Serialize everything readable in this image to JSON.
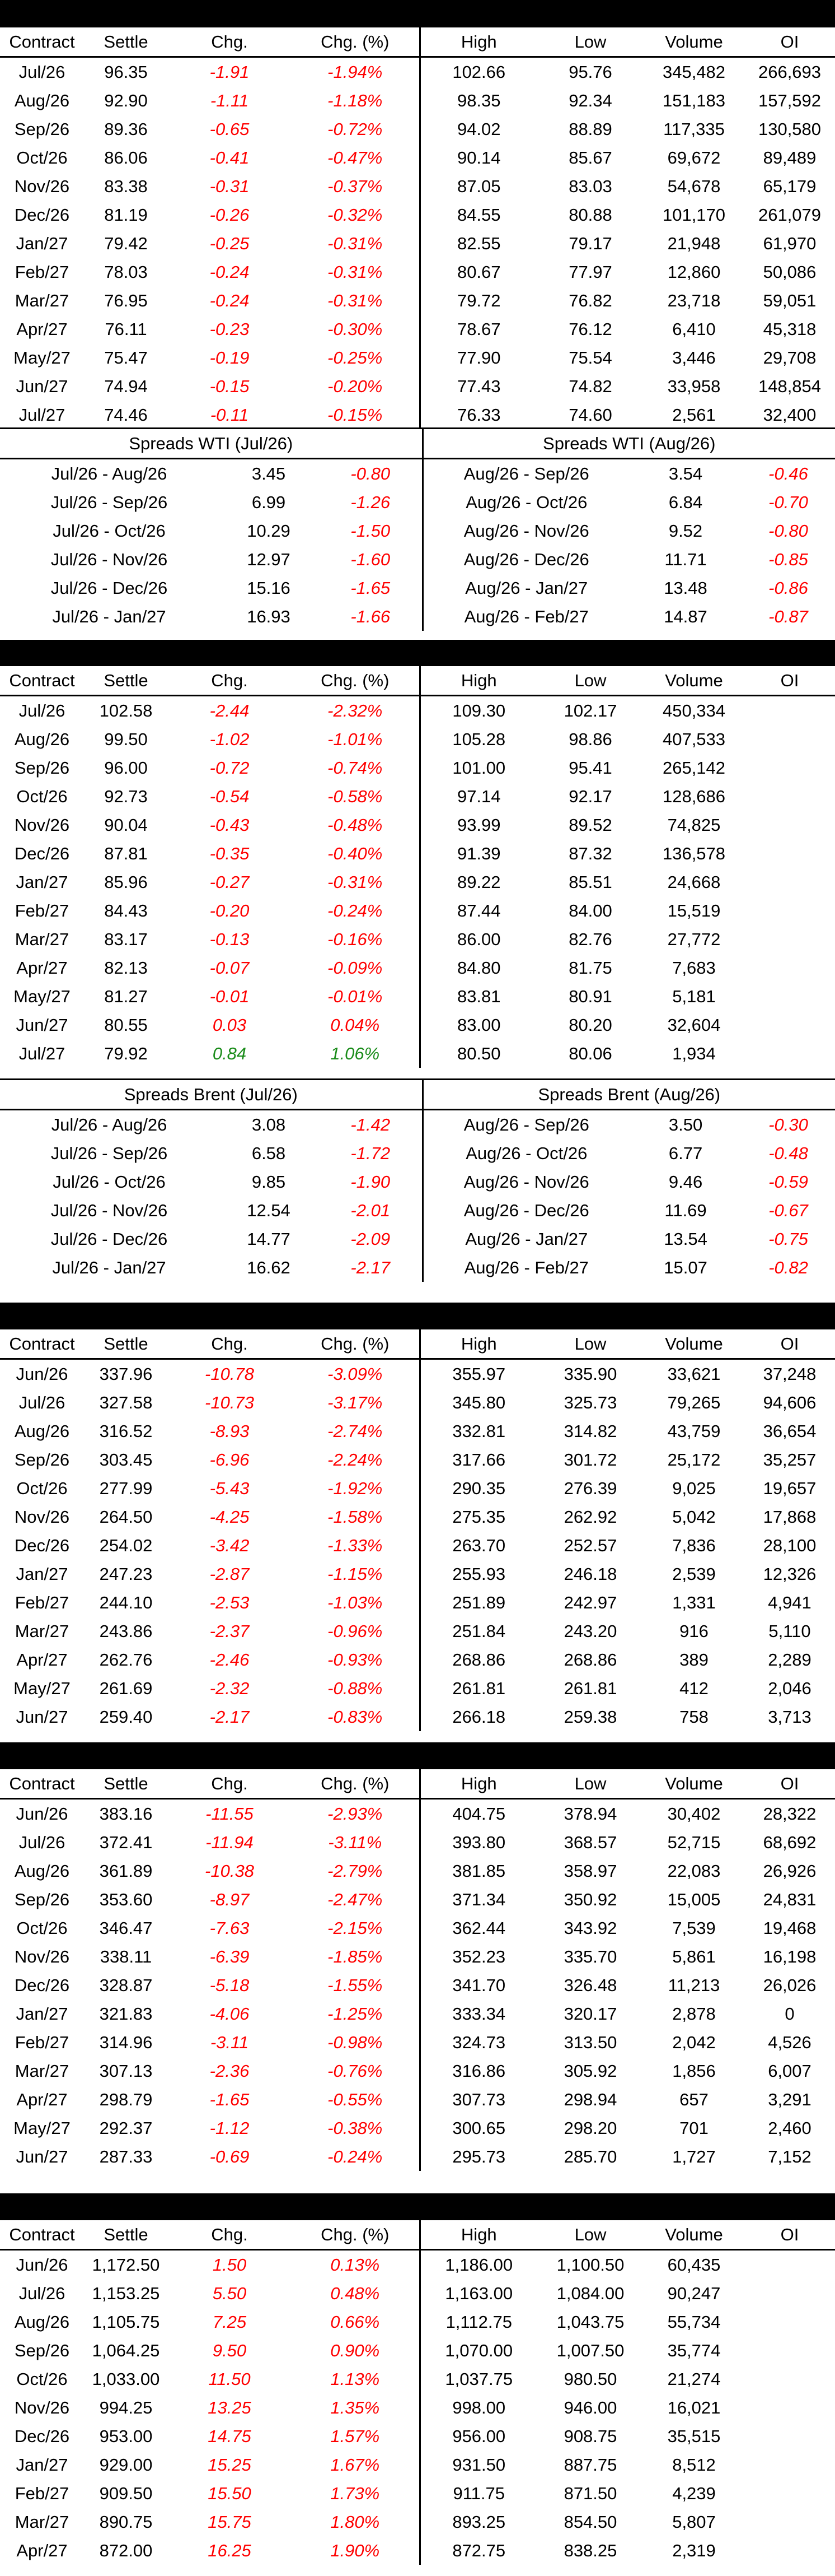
{
  "columns": [
    "Contract",
    "Settle",
    "Chg.",
    "Chg. (%)",
    "High",
    "Low",
    "Volume",
    "OI"
  ],
  "wti": {
    "rows": [
      [
        "Jul/26",
        "96.35",
        "-1.91",
        "-1.94%",
        "102.66",
        "95.76",
        "345,482",
        "266,693"
      ],
      [
        "Aug/26",
        "92.90",
        "-1.11",
        "-1.18%",
        "98.35",
        "92.34",
        "151,183",
        "157,592"
      ],
      [
        "Sep/26",
        "89.36",
        "-0.65",
        "-0.72%",
        "94.02",
        "88.89",
        "117,335",
        "130,580"
      ],
      [
        "Oct/26",
        "86.06",
        "-0.41",
        "-0.47%",
        "90.14",
        "85.67",
        "69,672",
        "89,489"
      ],
      [
        "Nov/26",
        "83.38",
        "-0.31",
        "-0.37%",
        "87.05",
        "83.03",
        "54,678",
        "65,179"
      ],
      [
        "Dec/26",
        "81.19",
        "-0.26",
        "-0.32%",
        "84.55",
        "80.88",
        "101,170",
        "261,079"
      ],
      [
        "Jan/27",
        "79.42",
        "-0.25",
        "-0.31%",
        "82.55",
        "79.17",
        "21,948",
        "61,970"
      ],
      [
        "Feb/27",
        "78.03",
        "-0.24",
        "-0.31%",
        "80.67",
        "77.97",
        "12,860",
        "50,086"
      ],
      [
        "Mar/27",
        "76.95",
        "-0.24",
        "-0.31%",
        "79.72",
        "76.82",
        "23,718",
        "59,051"
      ],
      [
        "Apr/27",
        "76.11",
        "-0.23",
        "-0.30%",
        "78.67",
        "76.12",
        "6,410",
        "45,318"
      ],
      [
        "May/27",
        "75.47",
        "-0.19",
        "-0.25%",
        "77.90",
        "75.54",
        "3,446",
        "29,708"
      ],
      [
        "Jun/27",
        "74.94",
        "-0.15",
        "-0.20%",
        "77.43",
        "74.82",
        "33,958",
        "148,854"
      ],
      [
        "Jul/27",
        "74.46",
        "-0.11",
        "-0.15%",
        "76.33",
        "74.60",
        "2,561",
        "32,400"
      ]
    ],
    "spreads_left_title": "Spreads WTI (Jul/26)",
    "spreads_right_title": "Spreads WTI (Aug/26)",
    "spreads_left": [
      [
        "Jul/26 - Aug/26",
        "3.45",
        "-0.80"
      ],
      [
        "Jul/26 - Sep/26",
        "6.99",
        "-1.26"
      ],
      [
        "Jul/26 - Oct/26",
        "10.29",
        "-1.50"
      ],
      [
        "Jul/26 - Nov/26",
        "12.97",
        "-1.60"
      ],
      [
        "Jul/26 - Dec/26",
        "15.16",
        "-1.65"
      ],
      [
        "Jul/26 - Jan/27",
        "16.93",
        "-1.66"
      ]
    ],
    "spreads_right": [
      [
        "Aug/26 - Sep/26",
        "3.54",
        "-0.46"
      ],
      [
        "Aug/26 - Oct/26",
        "6.84",
        "-0.70"
      ],
      [
        "Aug/26 - Nov/26",
        "9.52",
        "-0.80"
      ],
      [
        "Aug/26 - Dec/26",
        "11.71",
        "-0.85"
      ],
      [
        "Aug/26 - Jan/27",
        "13.48",
        "-0.86"
      ],
      [
        "Aug/26 - Feb/27",
        "14.87",
        "-0.87"
      ]
    ]
  },
  "brent": {
    "rows": [
      [
        "Jul/26",
        "102.58",
        "-2.44",
        "-2.32%",
        "109.30",
        "102.17",
        "450,334",
        ""
      ],
      [
        "Aug/26",
        "99.50",
        "-1.02",
        "-1.01%",
        "105.28",
        "98.86",
        "407,533",
        ""
      ],
      [
        "Sep/26",
        "96.00",
        "-0.72",
        "-0.74%",
        "101.00",
        "95.41",
        "265,142",
        ""
      ],
      [
        "Oct/26",
        "92.73",
        "-0.54",
        "-0.58%",
        "97.14",
        "92.17",
        "128,686",
        ""
      ],
      [
        "Nov/26",
        "90.04",
        "-0.43",
        "-0.48%",
        "93.99",
        "89.52",
        "74,825",
        ""
      ],
      [
        "Dec/26",
        "87.81",
        "-0.35",
        "-0.40%",
        "91.39",
        "87.32",
        "136,578",
        ""
      ],
      [
        "Jan/27",
        "85.96",
        "-0.27",
        "-0.31%",
        "89.22",
        "85.51",
        "24,668",
        ""
      ],
      [
        "Feb/27",
        "84.43",
        "-0.20",
        "-0.24%",
        "87.44",
        "84.00",
        "15,519",
        ""
      ],
      [
        "Mar/27",
        "83.17",
        "-0.13",
        "-0.16%",
        "86.00",
        "82.76",
        "27,772",
        ""
      ],
      [
        "Apr/27",
        "82.13",
        "-0.07",
        "-0.09%",
        "84.80",
        "81.75",
        "7,683",
        ""
      ],
      [
        "May/27",
        "81.27",
        "-0.01",
        "-0.01%",
        "83.81",
        "80.91",
        "5,181",
        ""
      ],
      [
        "Jun/27",
        "80.55",
        "0.03",
        "0.04%",
        "83.00",
        "80.20",
        "32,604",
        ""
      ],
      [
        "Jul/27",
        "79.92",
        "0.84",
        "1.06%",
        "80.50",
        "80.06",
        "1,934",
        ""
      ]
    ],
    "spreads_left_title": "Spreads Brent (Jul/26)",
    "spreads_right_title": "Spreads Brent (Aug/26)",
    "spreads_left": [
      [
        "Jul/26 - Aug/26",
        "3.08",
        "-1.42"
      ],
      [
        "Jul/26 - Sep/26",
        "6.58",
        "-1.72"
      ],
      [
        "Jul/26 - Oct/26",
        "9.85",
        "-1.90"
      ],
      [
        "Jul/26 - Nov/26",
        "12.54",
        "-2.01"
      ],
      [
        "Jul/26 - Dec/26",
        "14.77",
        "-2.09"
      ],
      [
        "Jul/26 - Jan/27",
        "16.62",
        "-2.17"
      ]
    ],
    "spreads_right": [
      [
        "Aug/26 - Sep/26",
        "3.50",
        "-0.30"
      ],
      [
        "Aug/26 - Oct/26",
        "6.77",
        "-0.48"
      ],
      [
        "Aug/26 - Nov/26",
        "9.46",
        "-0.59"
      ],
      [
        "Aug/26 - Dec/26",
        "11.69",
        "-0.67"
      ],
      [
        "Aug/26 - Jan/27",
        "13.54",
        "-0.75"
      ],
      [
        "Aug/26 - Feb/27",
        "15.07",
        "-0.82"
      ]
    ]
  },
  "table3": {
    "rows": [
      [
        "Jun/26",
        "337.96",
        "-10.78",
        "-3.09%",
        "355.97",
        "335.90",
        "33,621",
        "37,248"
      ],
      [
        "Jul/26",
        "327.58",
        "-10.73",
        "-3.17%",
        "345.80",
        "325.73",
        "79,265",
        "94,606"
      ],
      [
        "Aug/26",
        "316.52",
        "-8.93",
        "-2.74%",
        "332.81",
        "314.82",
        "43,759",
        "36,654"
      ],
      [
        "Sep/26",
        "303.45",
        "-6.96",
        "-2.24%",
        "317.66",
        "301.72",
        "25,172",
        "35,257"
      ],
      [
        "Oct/26",
        "277.99",
        "-5.43",
        "-1.92%",
        "290.35",
        "276.39",
        "9,025",
        "19,657"
      ],
      [
        "Nov/26",
        "264.50",
        "-4.25",
        "-1.58%",
        "275.35",
        "262.92",
        "5,042",
        "17,868"
      ],
      [
        "Dec/26",
        "254.02",
        "-3.42",
        "-1.33%",
        "263.70",
        "252.57",
        "7,836",
        "28,100"
      ],
      [
        "Jan/27",
        "247.23",
        "-2.87",
        "-1.15%",
        "255.93",
        "246.18",
        "2,539",
        "12,326"
      ],
      [
        "Feb/27",
        "244.10",
        "-2.53",
        "-1.03%",
        "251.89",
        "242.97",
        "1,331",
        "4,941"
      ],
      [
        "Mar/27",
        "243.86",
        "-2.37",
        "-0.96%",
        "251.84",
        "243.20",
        "916",
        "5,110"
      ],
      [
        "Apr/27",
        "262.76",
        "-2.46",
        "-0.93%",
        "268.86",
        "268.86",
        "389",
        "2,289"
      ],
      [
        "May/27",
        "261.69",
        "-2.32",
        "-0.88%",
        "261.81",
        "261.81",
        "412",
        "2,046"
      ],
      [
        "Jun/27",
        "259.40",
        "-2.17",
        "-0.83%",
        "266.18",
        "259.38",
        "758",
        "3,713"
      ]
    ]
  },
  "table4": {
    "rows": [
      [
        "Jun/26",
        "383.16",
        "-11.55",
        "-2.93%",
        "404.75",
        "378.94",
        "30,402",
        "28,322"
      ],
      [
        "Jul/26",
        "372.41",
        "-11.94",
        "-3.11%",
        "393.80",
        "368.57",
        "52,715",
        "68,692"
      ],
      [
        "Aug/26",
        "361.89",
        "-10.38",
        "-2.79%",
        "381.85",
        "358.97",
        "22,083",
        "26,926"
      ],
      [
        "Sep/26",
        "353.60",
        "-8.97",
        "-2.47%",
        "371.34",
        "350.92",
        "15,005",
        "24,831"
      ],
      [
        "Oct/26",
        "346.47",
        "-7.63",
        "-2.15%",
        "362.44",
        "343.92",
        "7,539",
        "19,468"
      ],
      [
        "Nov/26",
        "338.11",
        "-6.39",
        "-1.85%",
        "352.23",
        "335.70",
        "5,861",
        "16,198"
      ],
      [
        "Dec/26",
        "328.87",
        "-5.18",
        "-1.55%",
        "341.70",
        "326.48",
        "11,213",
        "26,026"
      ],
      [
        "Jan/27",
        "321.83",
        "-4.06",
        "-1.25%",
        "333.34",
        "320.17",
        "2,878",
        "0"
      ],
      [
        "Feb/27",
        "314.96",
        "-3.11",
        "-0.98%",
        "324.73",
        "313.50",
        "2,042",
        "4,526"
      ],
      [
        "Mar/27",
        "307.13",
        "-2.36",
        "-0.76%",
        "316.86",
        "305.92",
        "1,856",
        "6,007"
      ],
      [
        "Apr/27",
        "298.79",
        "-1.65",
        "-0.55%",
        "307.73",
        "298.94",
        "657",
        "3,291"
      ],
      [
        "May/27",
        "292.37",
        "-1.12",
        "-0.38%",
        "300.65",
        "298.20",
        "701",
        "2,460"
      ],
      [
        "Jun/27",
        "287.33",
        "-0.69",
        "-0.24%",
        "295.73",
        "285.70",
        "1,727",
        "7,152"
      ]
    ]
  },
  "table5": {
    "rows": [
      [
        "Jun/26",
        "1,172.50",
        "1.50",
        "0.13%",
        "1,186.00",
        "1,100.50",
        "60,435",
        ""
      ],
      [
        "Jul/26",
        "1,153.25",
        "5.50",
        "0.48%",
        "1,163.00",
        "1,084.00",
        "90,247",
        ""
      ],
      [
        "Aug/26",
        "1,105.75",
        "7.25",
        "0.66%",
        "1,112.75",
        "1,043.75",
        "55,734",
        ""
      ],
      [
        "Sep/26",
        "1,064.25",
        "9.50",
        "0.90%",
        "1,070.00",
        "1,007.50",
        "35,774",
        ""
      ],
      [
        "Oct/26",
        "1,033.00",
        "11.50",
        "1.13%",
        "1,037.75",
        "980.50",
        "21,274",
        ""
      ],
      [
        "Nov/26",
        "994.25",
        "13.25",
        "1.35%",
        "998.00",
        "946.00",
        "16,021",
        ""
      ],
      [
        "Dec/26",
        "953.00",
        "14.75",
        "1.57%",
        "956.00",
        "908.75",
        "35,515",
        ""
      ],
      [
        "Jan/27",
        "929.00",
        "15.25",
        "1.67%",
        "931.50",
        "887.75",
        "8,512",
        ""
      ],
      [
        "Feb/27",
        "909.50",
        "15.50",
        "1.73%",
        "911.75",
        "871.50",
        "4,239",
        ""
      ],
      [
        "Mar/27",
        "890.75",
        "15.75",
        "1.80%",
        "893.25",
        "854.50",
        "5,807",
        ""
      ],
      [
        "Apr/27",
        "872.00",
        "16.25",
        "1.90%",
        "872.75",
        "838.25",
        "2,319",
        ""
      ]
    ]
  }
}
